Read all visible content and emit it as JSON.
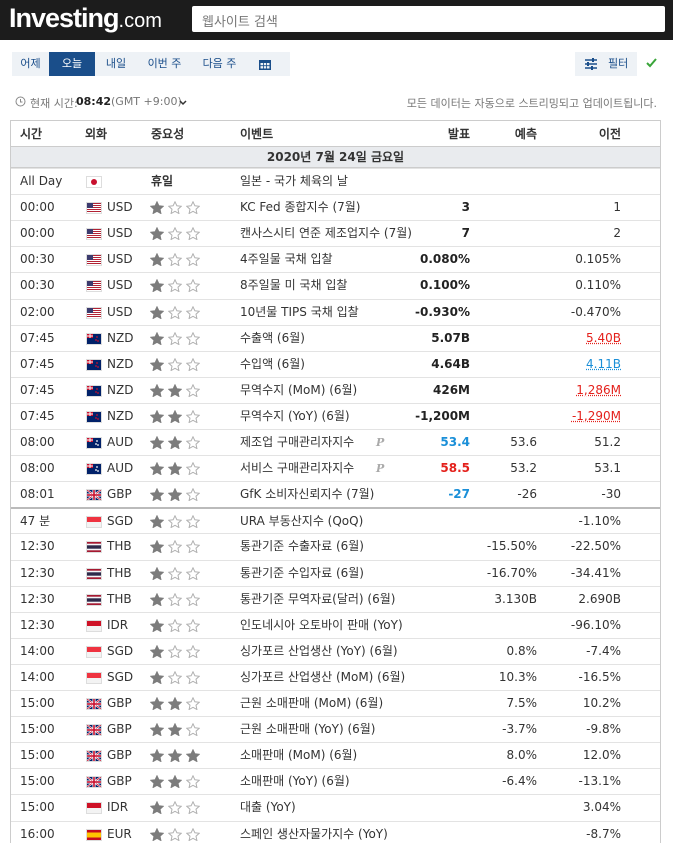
{
  "header": {
    "logo": "Investing",
    "logo_suffix": ".com",
    "search_placeholder": "웹사이트 검색"
  },
  "tabs": {
    "items": [
      "어제",
      "오늘",
      "내일",
      "이번 주",
      "다음 주"
    ],
    "active": 1,
    "filter": "필터"
  },
  "time_bar": {
    "label": "현재 시간:",
    "time": "08:42",
    "zone": "(GMT +9:00)",
    "note": "모든 데이터는 자동으로 스트리밍되고 업데이트됩니다."
  },
  "table": {
    "columns": [
      "시간",
      "외화",
      "중요성",
      "이벤트",
      "발표",
      "예측",
      "이전"
    ],
    "date": "2020년 7월 24일 금요일",
    "separator_after": 12,
    "rows": [
      {
        "time": "All Day",
        "flag": "JP",
        "importance_label": "휴일",
        "event": "일본 - 국가 체육의 날"
      },
      {
        "time": "00:00",
        "flag": "US",
        "currency": "USD",
        "importance": 1,
        "event": "KC Fed 종합지수 (7월)",
        "actual": "3",
        "previous": "1"
      },
      {
        "time": "00:00",
        "flag": "US",
        "currency": "USD",
        "importance": 1,
        "event": "캔사스시티 연준 제조업지수 (7월)",
        "actual": "7",
        "previous": "2"
      },
      {
        "time": "00:30",
        "flag": "US",
        "currency": "USD",
        "importance": 1,
        "event": "4주일물 국채 입찰",
        "actual": "0.080%",
        "previous": "0.105%"
      },
      {
        "time": "00:30",
        "flag": "US",
        "currency": "USD",
        "importance": 1,
        "event": "8주일물 미 국채 입찰",
        "actual": "0.100%",
        "previous": "0.110%"
      },
      {
        "time": "02:00",
        "flag": "US",
        "currency": "USD",
        "importance": 1,
        "event": "10년물 TIPS 국채 입찰",
        "actual": "-0.930%",
        "previous": "-0.470%"
      },
      {
        "time": "07:45",
        "flag": "NZ",
        "currency": "NZD",
        "importance": 1,
        "event": "수출액 (6월)",
        "actual": "5.07B",
        "previous": "5.40B",
        "previous_color": "#e4211c"
      },
      {
        "time": "07:45",
        "flag": "NZ",
        "currency": "NZD",
        "importance": 1,
        "event": "수입액 (6월)",
        "actual": "4.64B",
        "previous": "4.11B",
        "previous_color": "#1a8fd8"
      },
      {
        "time": "07:45",
        "flag": "NZ",
        "currency": "NZD",
        "importance": 2,
        "event": "무역수지 (MoM) (6월)",
        "actual": "426M",
        "previous": "1,286M",
        "previous_color": "#e4211c"
      },
      {
        "time": "07:45",
        "flag": "NZ",
        "currency": "NZD",
        "importance": 2,
        "event": "무역수지 (YoY) (6월)",
        "actual": "-1,200M",
        "previous": "-1,290M",
        "previous_color": "#e4211c"
      },
      {
        "time": "08:00",
        "flag": "AU",
        "currency": "AUD",
        "importance": 2,
        "event": "제조업 구매관리자지수",
        "marker": "P",
        "actual": "53.4",
        "actual_color": "#1a8fd8",
        "forecast": "53.6",
        "previous": "51.2"
      },
      {
        "time": "08:00",
        "flag": "AU",
        "currency": "AUD",
        "importance": 2,
        "event": "서비스 구매관리자지수",
        "marker": "P",
        "actual": "58.5",
        "actual_color": "#e4211c",
        "forecast": "53.2",
        "previous": "53.1"
      },
      {
        "time": "08:01",
        "flag": "GB",
        "currency": "GBP",
        "importance": 2,
        "event": "GfK 소비자신뢰지수 (7월)",
        "actual": "-27",
        "actual_color": "#1a8fd8",
        "forecast": "-26",
        "previous": "-30"
      },
      {
        "time": "47 분",
        "flag": "SG",
        "currency": "SGD",
        "importance": 1,
        "event": "URA 부동산지수 (QoQ)",
        "previous": "-1.10%"
      },
      {
        "time": "12:30",
        "flag": "TH",
        "currency": "THB",
        "importance": 1,
        "event": "통관기준 수출자료 (6월)",
        "forecast": "-15.50%",
        "previous": "-22.50%"
      },
      {
        "time": "12:30",
        "flag": "TH",
        "currency": "THB",
        "importance": 1,
        "event": "통관기준 수입자료 (6월)",
        "forecast": "-16.70%",
        "previous": "-34.41%"
      },
      {
        "time": "12:30",
        "flag": "TH",
        "currency": "THB",
        "importance": 1,
        "event": "통관기준 무역자료(달러) (6월)",
        "forecast": "3.130B",
        "previous": "2.690B"
      },
      {
        "time": "12:30",
        "flag": "ID",
        "currency": "IDR",
        "importance": 1,
        "event": "인도네시아 오토바이 판매 (YoY)",
        "previous": "-96.10%"
      },
      {
        "time": "14:00",
        "flag": "SG",
        "currency": "SGD",
        "importance": 1,
        "event": "싱가포르 산업생산 (YoY) (6월)",
        "forecast": "0.8%",
        "previous": "-7.4%"
      },
      {
        "time": "14:00",
        "flag": "SG",
        "currency": "SGD",
        "importance": 1,
        "event": "싱가포르 산업생산 (MoM) (6월)",
        "forecast": "10.3%",
        "previous": "-16.5%"
      },
      {
        "time": "15:00",
        "flag": "GB",
        "currency": "GBP",
        "importance": 2,
        "event": "근원 소매판매 (MoM) (6월)",
        "forecast": "7.5%",
        "previous": "10.2%"
      },
      {
        "time": "15:00",
        "flag": "GB",
        "currency": "GBP",
        "importance": 2,
        "event": "근원 소매판매 (YoY) (6월)",
        "forecast": "-3.7%",
        "previous": "-9.8%"
      },
      {
        "time": "15:00",
        "flag": "GB",
        "currency": "GBP",
        "importance": 3,
        "event": "소매판매 (MoM) (6월)",
        "forecast": "8.0%",
        "previous": "12.0%"
      },
      {
        "time": "15:00",
        "flag": "GB",
        "currency": "GBP",
        "importance": 2,
        "event": "소매판매 (YoY) (6월)",
        "forecast": "-6.4%",
        "previous": "-13.1%"
      },
      {
        "time": "15:00",
        "flag": "ID",
        "currency": "IDR",
        "importance": 1,
        "event": "대출 (YoY)",
        "previous": "3.04%"
      },
      {
        "time": "16:00",
        "flag": "ES",
        "currency": "EUR",
        "importance": 1,
        "event": "스페인 생산자물가지수 (YoY)",
        "previous": "-8.7%"
      }
    ]
  }
}
